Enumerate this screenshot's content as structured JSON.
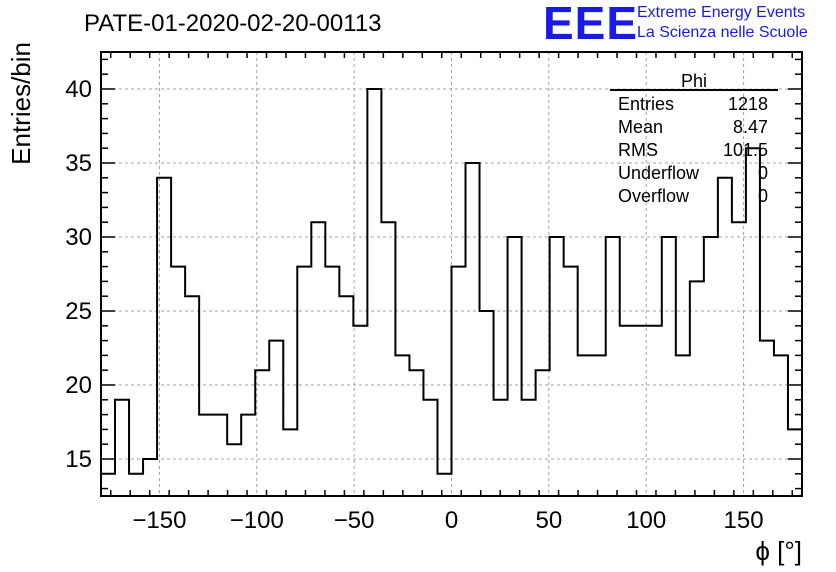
{
  "chart_data": {
    "type": "bar",
    "title": "PATE-01-2020-02-20-00113",
    "xlabel": "ϕ [°]",
    "ylabel": "Entries/bin",
    "xlim": [
      -180,
      180
    ],
    "ylim": [
      12.5,
      42.5
    ],
    "x_ticks": [
      -150,
      -100,
      -50,
      0,
      50,
      100,
      150
    ],
    "y_ticks": [
      15,
      20,
      25,
      30,
      35,
      40
    ],
    "bin_edges": [
      -180,
      -172.8,
      -165.6,
      -158.4,
      -151.2,
      -144,
      -136.8,
      -129.6,
      -122.4,
      -115.2,
      -108,
      -100.8,
      -93.6,
      -86.4,
      -79.2,
      -72,
      -64.8,
      -57.6,
      -50.4,
      -43.2,
      -36,
      -28.8,
      -21.6,
      -14.4,
      -7.2,
      0,
      7.2,
      14.4,
      21.6,
      28.8,
      36,
      43.2,
      50.4,
      57.6,
      64.8,
      72,
      79.2,
      86.4,
      93.6,
      100.8,
      108,
      115.2,
      122.4,
      129.6,
      136.8,
      144,
      151.2,
      158.4,
      165.6,
      172.8,
      180
    ],
    "values": [
      14,
      19,
      14,
      15,
      34,
      28,
      26,
      18,
      18,
      16,
      18,
      21,
      23,
      17,
      28,
      31,
      28,
      26,
      24,
      40,
      31,
      22,
      21,
      19,
      14,
      28,
      35,
      25,
      19,
      30,
      19,
      21,
      30,
      28,
      22,
      22,
      30,
      24,
      24,
      24,
      30,
      22,
      27,
      30,
      34,
      31,
      36,
      23,
      22,
      17
    ],
    "grid": true,
    "stats": {
      "name": "Phi",
      "rows": [
        {
          "label": "Entries",
          "value": "1218"
        },
        {
          "label": "Mean",
          "value": "8.47"
        },
        {
          "label": "RMS",
          "value": "101.5"
        },
        {
          "label": "Underflow",
          "value": "0"
        },
        {
          "label": "Overflow",
          "value": "0"
        }
      ]
    }
  },
  "logo": {
    "mark": "EEE",
    "line1": "Extreme Energy Events",
    "line2": "La Scienza nelle Scuole"
  },
  "colors": {
    "histogram": "#000000",
    "grid": "#a0a0a0",
    "logo": "#1a1ae6"
  }
}
